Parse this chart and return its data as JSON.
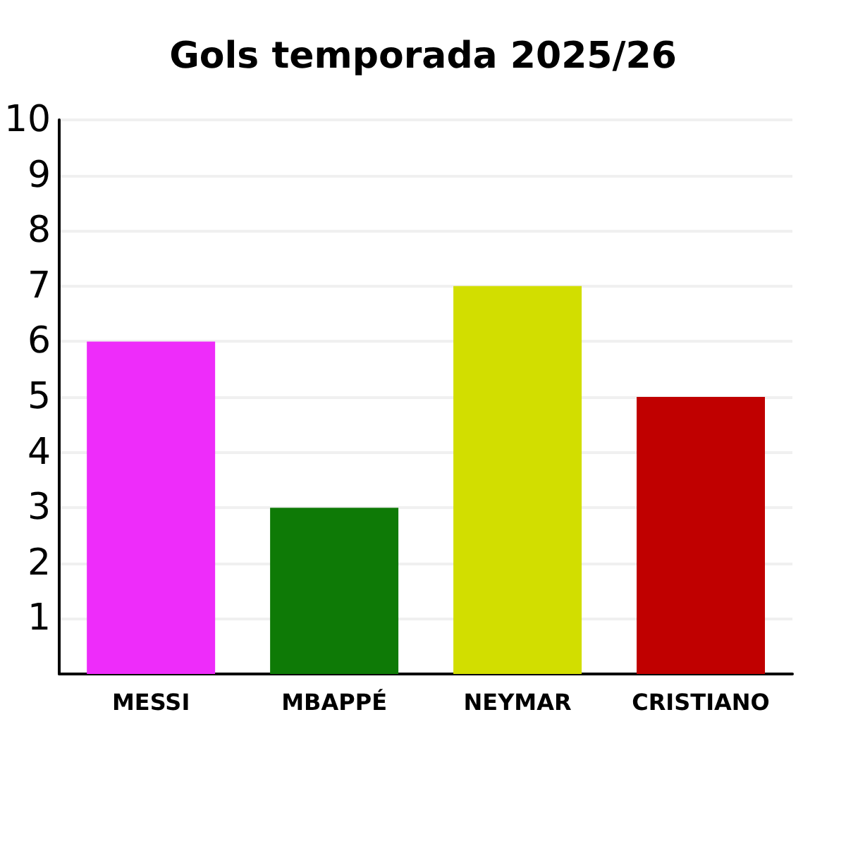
{
  "chart_data": {
    "type": "bar",
    "title": "Gols temporada 2025/26",
    "categories": [
      "MESSI",
      "MBAPPÉ",
      "NEYMAR",
      "CRISTIANO"
    ],
    "values": [
      6,
      3,
      7,
      5
    ],
    "colors": [
      "#ee2cfa",
      "#0e7a06",
      "#d2de00",
      "#c00000"
    ],
    "ylim": [
      0,
      10
    ],
    "yticks": [
      1,
      2,
      3,
      4,
      5,
      6,
      7,
      8,
      9,
      10
    ],
    "grid": "y"
  }
}
